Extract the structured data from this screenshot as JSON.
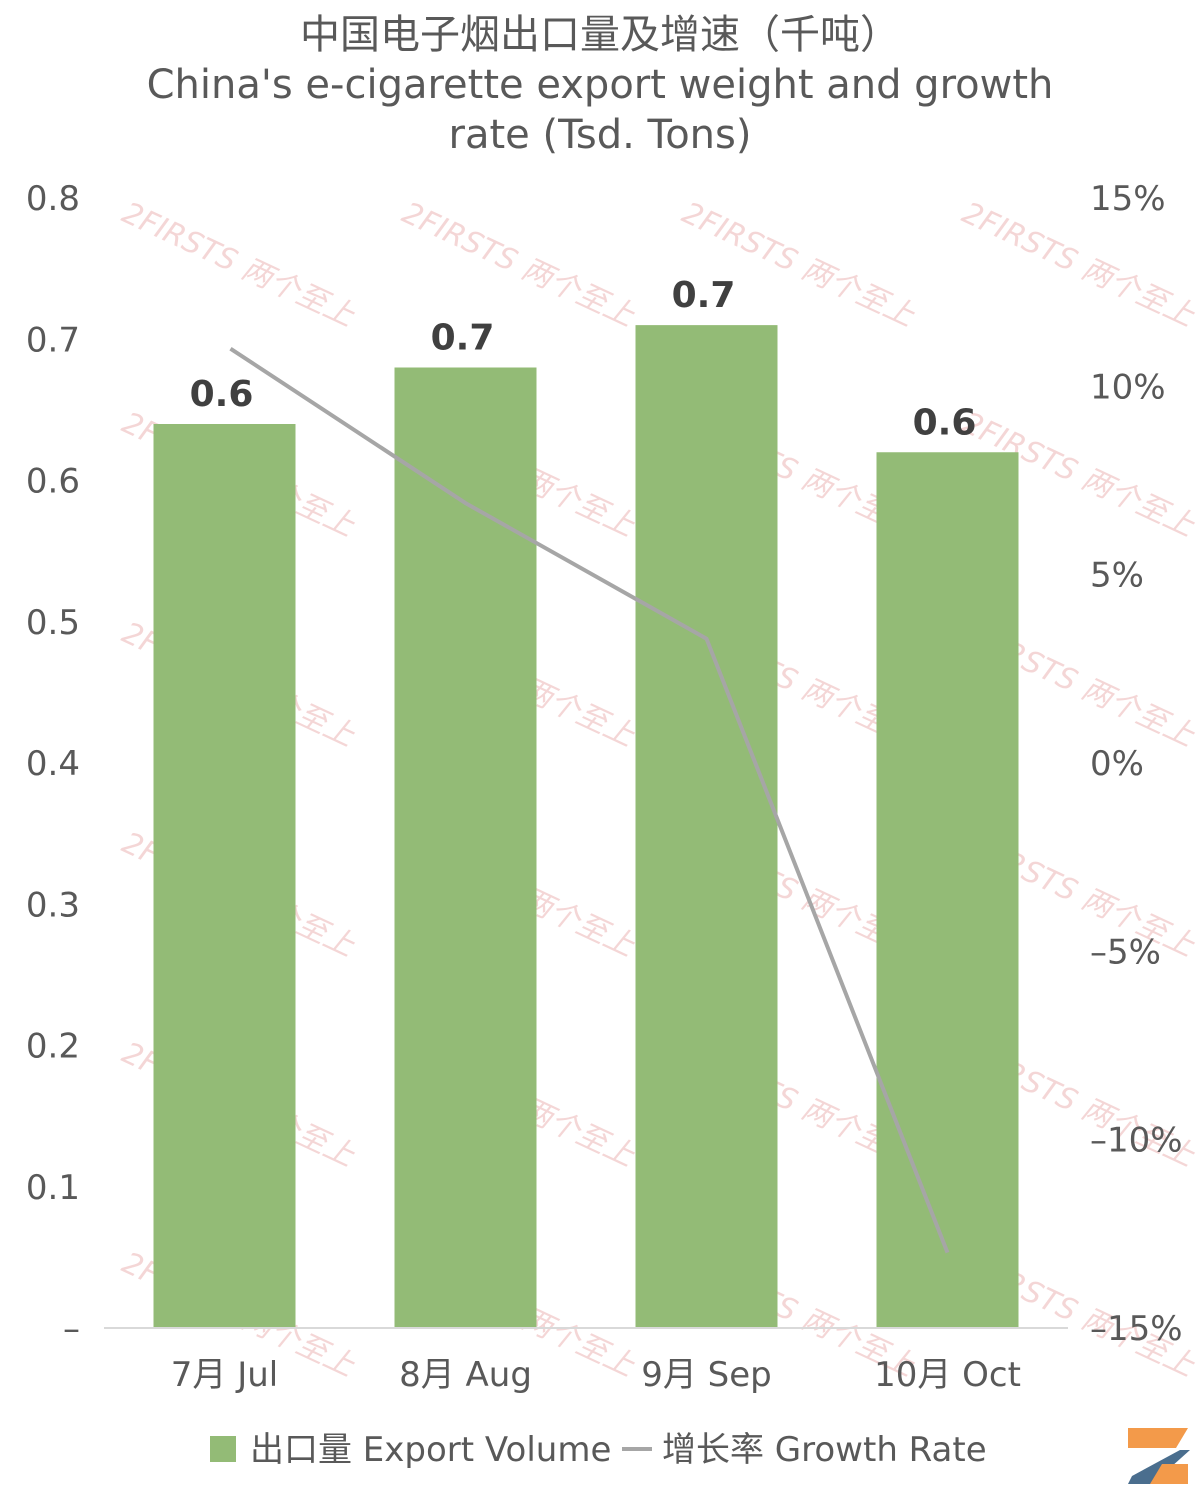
{
  "title_zh": "中国电子烟出口量及增速（千吨）",
  "title_en_line1": "China's e-cigarette export weight and growth",
  "title_en_line2": "rate (Tsd. Tons)",
  "watermark_text": "2FIRSTS 两个至上",
  "colors": {
    "bar": "#93bb76",
    "line": "#a6a6a6",
    "logo_orange": "#f39a4a",
    "logo_blue": "#4a6e8e"
  },
  "chart_data": {
    "type": "bar",
    "categories": [
      "7月 Jul",
      "8月 Aug",
      "9月 Sep",
      "10月 Oct"
    ],
    "series": [
      {
        "name": "出口量 Export Volume",
        "type": "bar",
        "axis": "left",
        "values": [
          0.64,
          0.68,
          0.71,
          0.62
        ],
        "labels": [
          "0.6",
          "0.7",
          "0.7",
          "0.6"
        ]
      },
      {
        "name": "增长率 Growth Rate",
        "type": "line",
        "axis": "right",
        "values": [
          0.11,
          0.069,
          0.033,
          -0.13
        ]
      }
    ],
    "y_left": {
      "ylim": [
        0,
        0.8
      ],
      "ticks": [
        0,
        0.1,
        0.2,
        0.3,
        0.4,
        0.5,
        0.6,
        0.7,
        0.8
      ],
      "tick_labels": [
        "–",
        "0.1",
        "0.2",
        "0.3",
        "0.4",
        "0.5",
        "0.6",
        "0.7",
        "0.8"
      ]
    },
    "y_right": {
      "ylim": [
        -0.15,
        0.15
      ],
      "ticks": [
        -0.15,
        -0.1,
        -0.05,
        0,
        0.05,
        0.1,
        0.15
      ],
      "tick_labels": [
        "–15%",
        "–10%",
        "–5%",
        "0%",
        "5%",
        "10%",
        "15%"
      ]
    },
    "grid": false,
    "legend_position": "bottom"
  }
}
